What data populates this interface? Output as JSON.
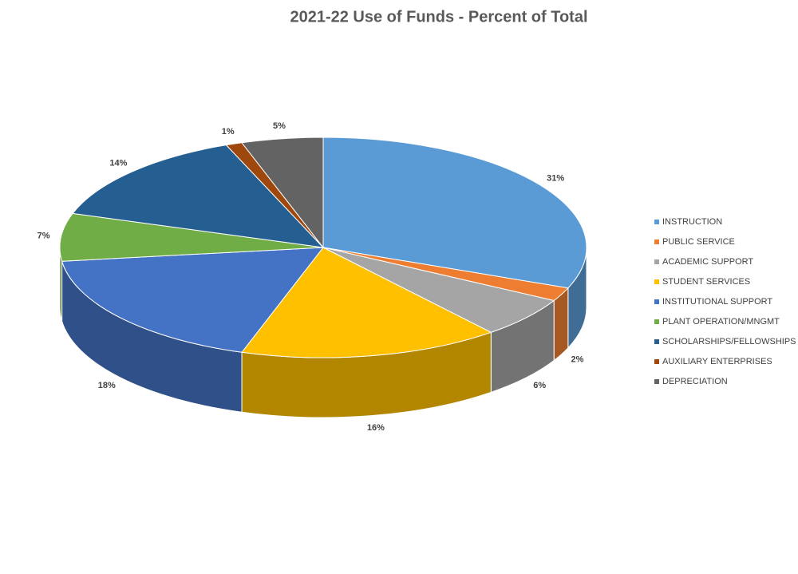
{
  "chart_data": {
    "type": "pie",
    "title": "2021-22 Use of Funds - Percent of Total",
    "categories": [
      "INSTRUCTION",
      "PUBLIC SERVICE",
      "ACADEMIC SUPPORT",
      "STUDENT SERVICES",
      "INSTITUTIONAL SUPPORT",
      "PLANT OPERATION/MNGMT",
      "SCHOLARSHIPS/FELLOWSHIPS",
      "AUXILIARY ENTERPRISES",
      "DEPRECIATION"
    ],
    "values": [
      31,
      2,
      6,
      16,
      18,
      7,
      14,
      1,
      5
    ],
    "value_labels": [
      "31%",
      "2%",
      "6%",
      "16%",
      "18%",
      "7%",
      "14%",
      "1%",
      "5%"
    ],
    "colors": [
      "#5b9bd5",
      "#ed7d31",
      "#a5a5a5",
      "#ffc000",
      "#4472c4",
      "#70ad47",
      "#255e91",
      "#9e480e",
      "#636363"
    ],
    "legend": "right"
  }
}
